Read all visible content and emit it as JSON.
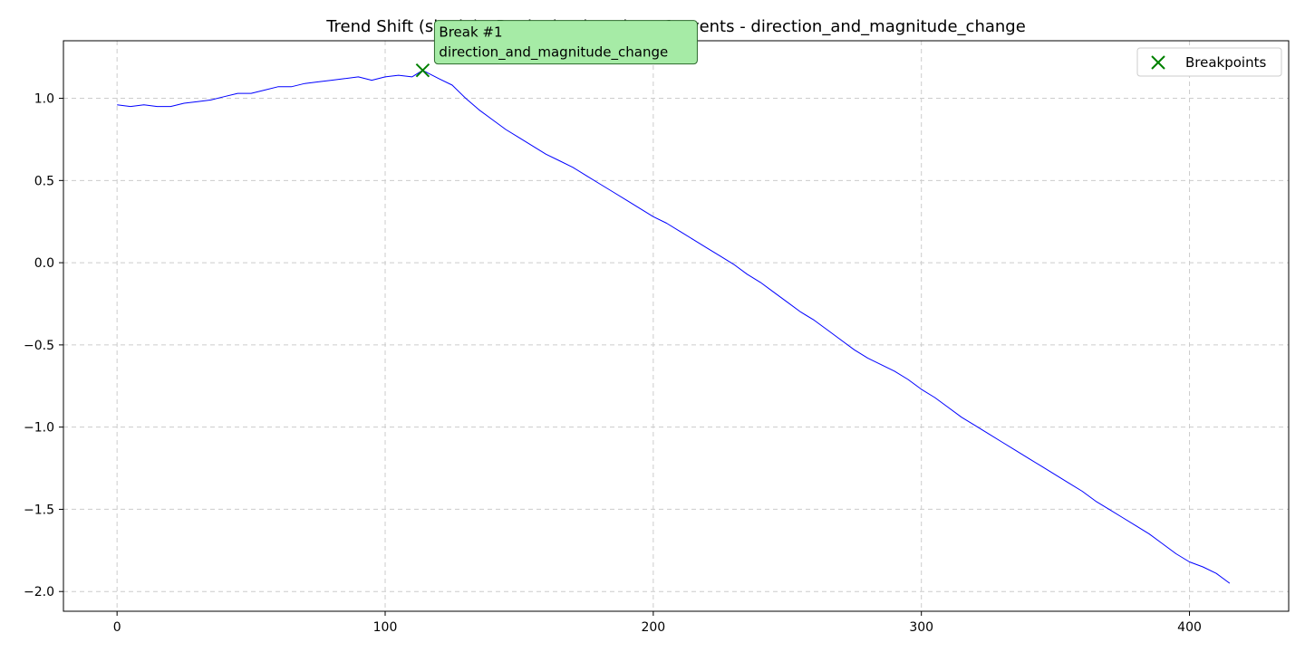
{
  "chart_data": {
    "type": "line",
    "title": "Trend Shift (single) - Beginning location - 1 events - direction_and_magnitude_change",
    "xlabel": "",
    "ylabel": "",
    "xlim": [
      -20,
      437
    ],
    "ylim": [
      -2.12,
      1.35
    ],
    "xticks": [
      0,
      100,
      200,
      300,
      400
    ],
    "yticks": [
      1.0,
      0.5,
      0.0,
      -0.5,
      -1.0,
      -1.5,
      -2.0
    ],
    "ytick_labels": [
      "1.0",
      "0.5",
      "0.0",
      "−0.5",
      "−1.0",
      "−1.5",
      "−2.0"
    ],
    "grid": true,
    "legend": {
      "placement": "top-right",
      "entries": [
        {
          "name": "Breakpoints",
          "marker": "x",
          "color": "#008000"
        }
      ]
    },
    "series": [
      {
        "color": "#0000ff",
        "x": [
          0,
          5,
          10,
          15,
          20,
          25,
          30,
          35,
          40,
          45,
          50,
          55,
          60,
          65,
          70,
          75,
          80,
          85,
          90,
          95,
          100,
          105,
          110,
          114,
          120,
          125,
          130,
          135,
          140,
          145,
          150,
          155,
          160,
          165,
          170,
          175,
          180,
          185,
          190,
          195,
          200,
          205,
          210,
          215,
          220,
          225,
          230,
          235,
          240,
          245,
          250,
          255,
          260,
          265,
          270,
          275,
          280,
          285,
          290,
          295,
          300,
          305,
          310,
          315,
          320,
          325,
          330,
          335,
          340,
          345,
          350,
          355,
          360,
          365,
          370,
          375,
          380,
          385,
          390,
          395,
          400,
          405,
          410,
          415
        ],
        "y": [
          0.96,
          0.95,
          0.96,
          0.95,
          0.95,
          0.97,
          0.98,
          0.99,
          1.01,
          1.03,
          1.03,
          1.05,
          1.07,
          1.07,
          1.09,
          1.1,
          1.11,
          1.12,
          1.13,
          1.11,
          1.13,
          1.14,
          1.13,
          1.17,
          1.12,
          1.08,
          1.0,
          0.93,
          0.87,
          0.81,
          0.76,
          0.71,
          0.66,
          0.62,
          0.58,
          0.53,
          0.48,
          0.43,
          0.38,
          0.33,
          0.28,
          0.24,
          0.19,
          0.14,
          0.09,
          0.04,
          -0.01,
          -0.07,
          -0.12,
          -0.18,
          -0.24,
          -0.3,
          -0.35,
          -0.41,
          -0.47,
          -0.53,
          -0.58,
          -0.62,
          -0.66,
          -0.71,
          -0.77,
          -0.82,
          -0.88,
          -0.94,
          -0.99,
          -1.04,
          -1.09,
          -1.14,
          -1.19,
          -1.24,
          -1.29,
          -1.34,
          -1.39,
          -1.45,
          -1.5,
          -1.55,
          -1.6,
          -1.65,
          -1.71,
          -1.77,
          -1.82,
          -1.85,
          -1.89,
          -1.95
        ]
      }
    ],
    "breakpoints": [
      {
        "x": 114,
        "y": 1.17,
        "label": "Break #1",
        "detail": "direction_and_magnitude_change"
      }
    ]
  }
}
